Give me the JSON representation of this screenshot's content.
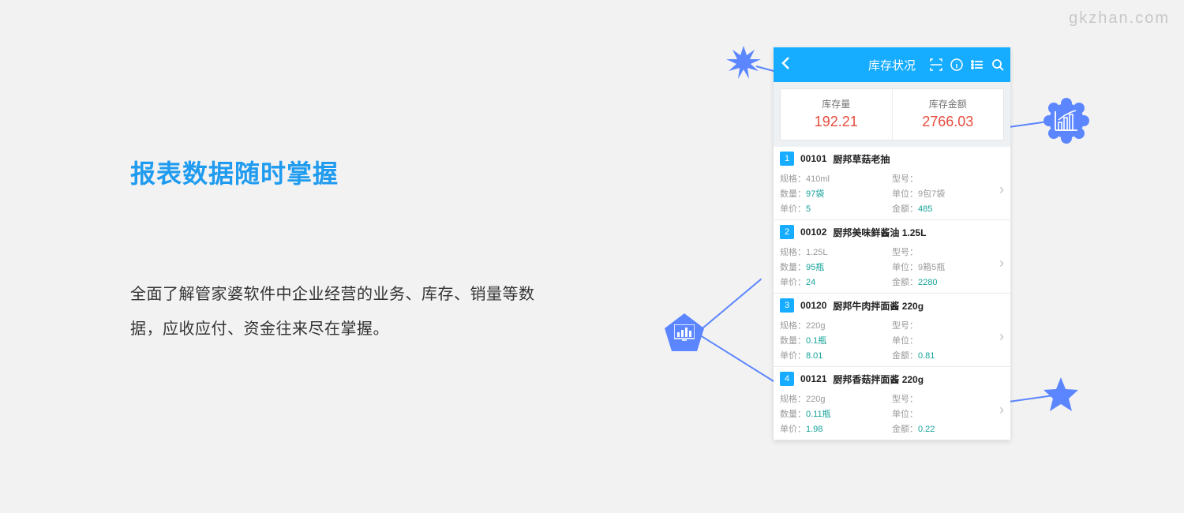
{
  "watermark": "gkzhan.com",
  "heading": "报表数据随时掌握",
  "description": "全面了解管家婆软件中企业经营的业务、库存、销量等数据，应收应付、资金往来尽在掌握。",
  "phone": {
    "title": "库存状况",
    "stats": {
      "stock_qty_label": "库存量",
      "stock_qty_value": "192.21",
      "stock_amount_label": "库存金额",
      "stock_amount_value": "2766.03"
    },
    "labels": {
      "spec": "规格：",
      "model": "型号：",
      "qty": "数量：",
      "unit": "单位：",
      "price": "单价：",
      "amount": "金额："
    },
    "items": [
      {
        "idx": "1",
        "code": "00101",
        "name": "厨邦草菇老抽",
        "spec": "410ml",
        "model": "",
        "qty": "97袋",
        "unit": "9包7袋",
        "price": "5",
        "amount": "485"
      },
      {
        "idx": "2",
        "code": "00102",
        "name": "厨邦美味鲜酱油 1.25L",
        "spec": "1.25L",
        "model": "",
        "qty": "95瓶",
        "unit": "9箱5瓶",
        "price": "24",
        "amount": "2280"
      },
      {
        "idx": "3",
        "code": "00120",
        "name": "厨邦牛肉拌面酱 220g",
        "spec": "220g",
        "model": "",
        "qty": "0.1瓶",
        "unit": "",
        "price": "8.01",
        "amount": "0.81"
      },
      {
        "idx": "4",
        "code": "00121",
        "name": "厨邦香菇拌面酱 220g",
        "spec": "220g",
        "model": "",
        "qty": "0.11瓶",
        "unit": "",
        "price": "1.98",
        "amount": "0.22"
      }
    ]
  },
  "colors": {
    "accent": "#1f9bef",
    "header": "#16acff",
    "stat_value": "#e74c3c",
    "teal": "#17a39a",
    "decor": "#5c86ff",
    "bg": "#f2f2f2"
  }
}
